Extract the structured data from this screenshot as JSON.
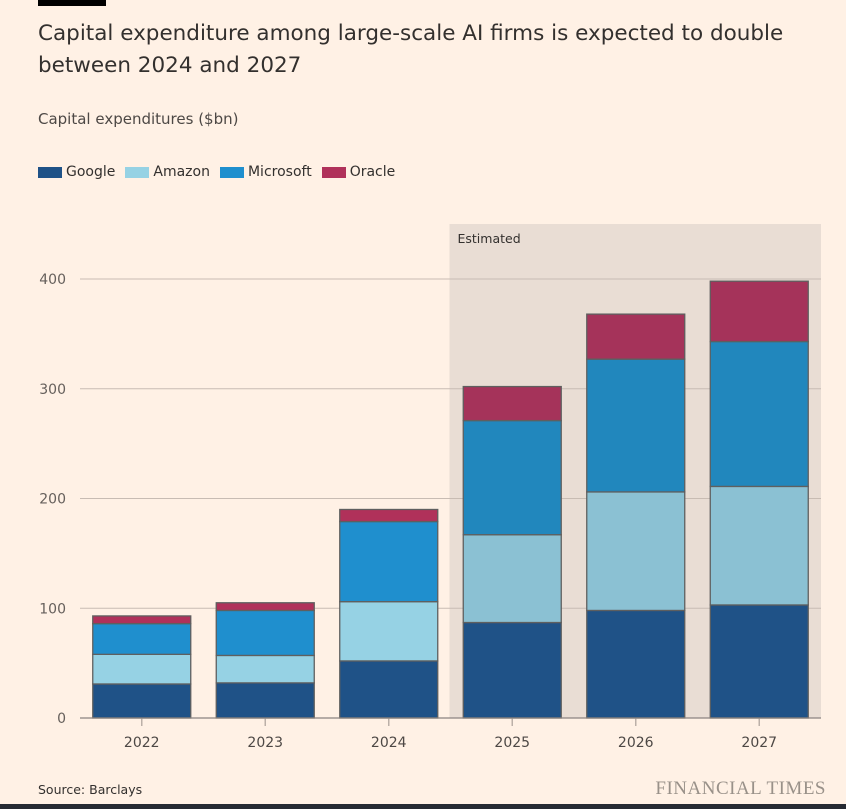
{
  "title": "Capital expenditure among large-scale AI firms is expected to double between 2024 and 2027",
  "source": "Source: Barclays",
  "brand": "FINANCIAL TIMES",
  "chart_data": {
    "type": "bar",
    "stacked": true,
    "ylabel": "Capital expenditures ($bn)",
    "categories": [
      "2022",
      "2023",
      "2024",
      "2025",
      "2026",
      "2027"
    ],
    "series": [
      {
        "name": "Google",
        "color": "#1f5287",
        "values": [
          31,
          32,
          52,
          87,
          98,
          103
        ]
      },
      {
        "name": "Amazon",
        "color": "#96d2e4",
        "values": [
          27,
          25,
          54,
          80,
          108,
          108
        ]
      },
      {
        "name": "Microsoft",
        "color": "#1f8fce",
        "values": [
          28,
          41,
          73,
          104,
          121,
          132
        ]
      },
      {
        "name": "Oracle",
        "color": "#b0315a",
        "values": [
          7,
          7,
          11,
          31,
          41,
          55
        ]
      }
    ],
    "ylim": [
      0,
      400
    ],
    "yticks": [
      0,
      100,
      200,
      300,
      400
    ],
    "grid": true,
    "legend": "top-left",
    "annotation": {
      "label": "Estimated",
      "from": "2025",
      "to": "2027"
    }
  }
}
